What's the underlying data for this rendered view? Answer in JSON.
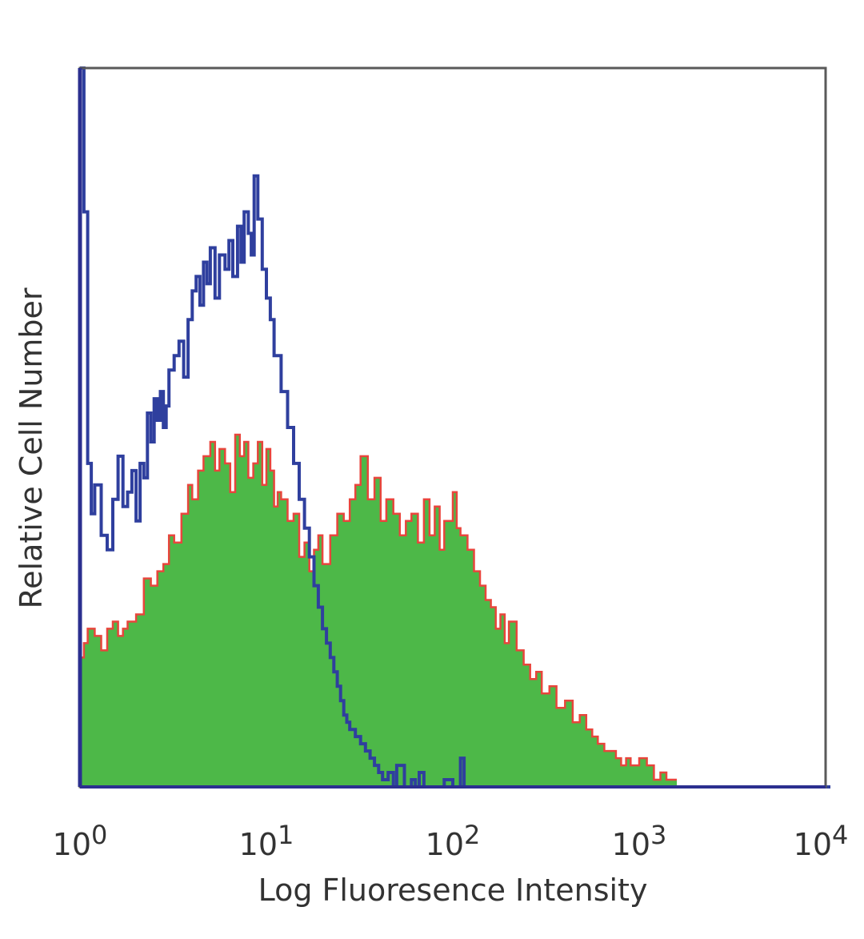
{
  "chart_data": {
    "type": "area",
    "xlabel": "Log Fluoresence Intensity",
    "ylabel": "Relative Cell Number",
    "xscale": "log",
    "xlim": [
      1,
      10000
    ],
    "ylim": [
      0,
      100
    ],
    "grid": false,
    "legend": "none",
    "x_ticks": [
      {
        "base": "10",
        "exp": "0",
        "value": 1
      },
      {
        "base": "10",
        "exp": "1",
        "value": 10
      },
      {
        "base": "10",
        "exp": "2",
        "value": 100
      },
      {
        "base": "10",
        "exp": "3",
        "value": 1000
      },
      {
        "base": "10",
        "exp": "4",
        "value": 10000
      }
    ],
    "series": [
      {
        "style": "filled",
        "fill": "#4db848",
        "edge": "#e8453c",
        "x": [
          1.0,
          1.05,
          1.1,
          1.2,
          1.3,
          1.4,
          1.5,
          1.6,
          1.7,
          1.8,
          2.0,
          2.2,
          2.4,
          2.6,
          2.8,
          3.0,
          3.2,
          3.5,
          3.8,
          4.0,
          4.3,
          4.6,
          5.0,
          5.3,
          5.6,
          6.0,
          6.4,
          6.8,
          7.2,
          7.6,
          8.0,
          8.5,
          9.0,
          9.5,
          10.0,
          10.5,
          11.0,
          11.5,
          12.0,
          13.0,
          14.0,
          15.0,
          16.0,
          17.0,
          18.0,
          19.0,
          20.0,
          22.0,
          24.0,
          26.0,
          28.0,
          30.0,
          32.0,
          35.0,
          38.0,
          41.0,
          44.0,
          48.0,
          52.0,
          56.0,
          60.0,
          65.0,
          70.0,
          75.0,
          80.0,
          85.0,
          90.0,
          100.0,
          105.0,
          110.0,
          120.0,
          130.0,
          140.0,
          150.0,
          160.0,
          170.0,
          180.0,
          190.0,
          200.0,
          220.0,
          240.0,
          260.0,
          280.0,
          300.0,
          330.0,
          360.0,
          400.0,
          440.0,
          480.0,
          520.0,
          560.0,
          600.0,
          650.0,
          700.0,
          750.0,
          800.0,
          850.0,
          900.0,
          1000.0,
          1100.0,
          1200.0,
          1300.0,
          1400.0,
          1500.0
        ],
        "values": [
          18,
          20,
          22,
          21,
          19,
          22,
          23,
          21,
          22,
          23,
          24,
          29,
          28,
          30,
          31,
          35,
          34,
          38,
          42,
          40,
          44,
          46,
          48,
          44,
          47,
          45,
          41,
          49,
          46,
          48,
          43,
          45,
          48,
          42,
          47,
          44,
          39,
          41,
          40,
          37,
          38,
          32,
          34,
          30,
          33,
          35,
          31,
          35,
          38,
          37,
          40,
          42,
          46,
          40,
          43,
          37,
          40,
          38,
          35,
          37,
          38,
          34,
          40,
          35,
          39,
          33,
          37,
          41,
          36,
          35,
          33,
          30,
          28,
          26,
          25,
          22,
          24,
          20,
          23,
          19,
          17,
          15,
          16,
          13,
          14,
          11,
          12,
          9,
          10,
          8,
          7,
          6,
          5,
          5,
          4,
          3,
          4,
          3,
          4,
          3,
          1,
          2,
          1,
          1
        ]
      },
      {
        "style": "line",
        "color": "#2f3f9e",
        "x": [
          1.0,
          1.05,
          1.1,
          1.15,
          1.2,
          1.3,
          1.4,
          1.5,
          1.6,
          1.7,
          1.8,
          1.9,
          2.0,
          2.1,
          2.2,
          2.3,
          2.4,
          2.5,
          2.6,
          2.7,
          2.8,
          2.9,
          3.0,
          3.2,
          3.4,
          3.6,
          3.8,
          4.0,
          4.2,
          4.4,
          4.6,
          4.8,
          5.0,
          5.3,
          5.6,
          6.0,
          6.3,
          6.6,
          7.0,
          7.3,
          7.6,
          8.0,
          8.3,
          8.6,
          9.0,
          9.5,
          10.0,
          10.5,
          11.0,
          12.0,
          13.0,
          14.0,
          15.0,
          16.0,
          17.0,
          18.0,
          19.0,
          20.0,
          21.0,
          22.0,
          23.0,
          24.0,
          25.0,
          26.0,
          27.0,
          28.0,
          30.0,
          32.0,
          34.0,
          36.0,
          38.0,
          40.0,
          42.0,
          45.0,
          48.0,
          50.0,
          55.0,
          60.0,
          63.0,
          66.0,
          70.0,
          80.0,
          90.0,
          100.0,
          110.0,
          115.0,
          120.0,
          130.0,
          150.0,
          200.0,
          500.0,
          1000.0,
          5000.0,
          10000.0
        ],
        "values": [
          100,
          80,
          45,
          38,
          42,
          35,
          33,
          40,
          46,
          39,
          41,
          44,
          37,
          45,
          43,
          52,
          48,
          54,
          51,
          55,
          50,
          53,
          58,
          60,
          62,
          57,
          65,
          69,
          71,
          67,
          73,
          70,
          75,
          68,
          74,
          72,
          76,
          71,
          78,
          73,
          80,
          77,
          74,
          85,
          79,
          72,
          68,
          65,
          60,
          55,
          50,
          45,
          40,
          36,
          32,
          28,
          25,
          22,
          20,
          18,
          16,
          14,
          12,
          10,
          9,
          8,
          7,
          6,
          5,
          4,
          3,
          2,
          1,
          2,
          0,
          3,
          0,
          1,
          0,
          2,
          0,
          0,
          1,
          0,
          4,
          0,
          0,
          0,
          0,
          0,
          0,
          0,
          0,
          0
        ]
      }
    ]
  }
}
